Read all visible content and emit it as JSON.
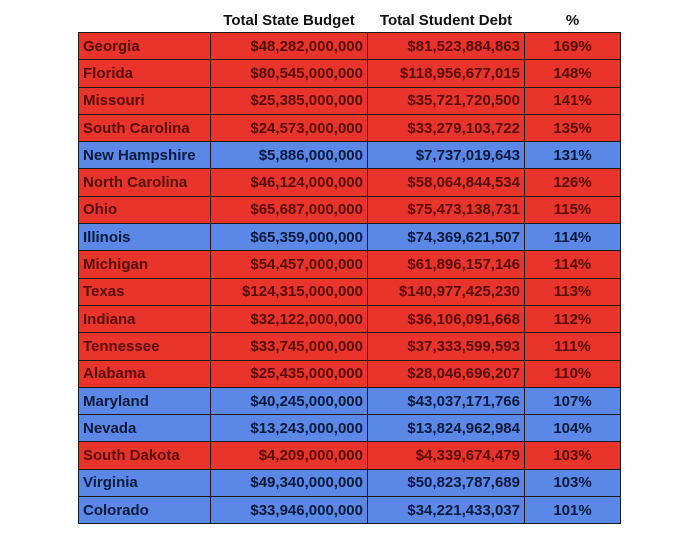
{
  "chart_data": {
    "type": "table",
    "columns": [
      "",
      "Total State Budget",
      "Total Student Debt",
      "%"
    ],
    "colors": {
      "red": "#e8342b",
      "blue": "#5b87e6"
    },
    "rows": [
      {
        "state": "Georgia",
        "budget": "$48,282,000,000",
        "debt": "$81,523,884,863",
        "pct": "169%",
        "color": "red"
      },
      {
        "state": "Florida",
        "budget": "$80,545,000,000",
        "debt": "$118,956,677,015",
        "pct": "148%",
        "color": "red"
      },
      {
        "state": "Missouri",
        "budget": "$25,385,000,000",
        "debt": "$35,721,720,500",
        "pct": "141%",
        "color": "red"
      },
      {
        "state": "South Carolina",
        "budget": "$24,573,000,000",
        "debt": "$33,279,103,722",
        "pct": "135%",
        "color": "red"
      },
      {
        "state": "New Hampshire",
        "budget": "$5,886,000,000",
        "debt": "$7,737,019,643",
        "pct": "131%",
        "color": "blue"
      },
      {
        "state": "North Carolina",
        "budget": "$46,124,000,000",
        "debt": "$58,064,844,534",
        "pct": "126%",
        "color": "red"
      },
      {
        "state": "Ohio",
        "budget": "$65,687,000,000",
        "debt": "$75,473,138,731",
        "pct": "115%",
        "color": "red"
      },
      {
        "state": "Illinois",
        "budget": "$65,359,000,000",
        "debt": "$74,369,621,507",
        "pct": "114%",
        "color": "blue"
      },
      {
        "state": "Michigan",
        "budget": "$54,457,000,000",
        "debt": "$61,896,157,146",
        "pct": "114%",
        "color": "red"
      },
      {
        "state": "Texas",
        "budget": "$124,315,000,000",
        "debt": "$140,977,425,230",
        "pct": "113%",
        "color": "red"
      },
      {
        "state": "Indiana",
        "budget": "$32,122,000,000",
        "debt": "$36,106,091,668",
        "pct": "112%",
        "color": "red"
      },
      {
        "state": "Tennessee",
        "budget": "$33,745,000,000",
        "debt": "$37,333,599,593",
        "pct": "111%",
        "color": "red"
      },
      {
        "state": "Alabama",
        "budget": "$25,435,000,000",
        "debt": "$28,046,696,207",
        "pct": "110%",
        "color": "red"
      },
      {
        "state": "Maryland",
        "budget": "$40,245,000,000",
        "debt": "$43,037,171,766",
        "pct": "107%",
        "color": "blue"
      },
      {
        "state": "Nevada",
        "budget": "$13,243,000,000",
        "debt": "$13,824,962,984",
        "pct": "104%",
        "color": "blue"
      },
      {
        "state": "South Dakota",
        "budget": "$4,209,000,000",
        "debt": "$4,339,674,479",
        "pct": "103%",
        "color": "red"
      },
      {
        "state": "Virginia",
        "budget": "$49,340,000,000",
        "debt": "$50,823,787,689",
        "pct": "103%",
        "color": "blue"
      },
      {
        "state": "Colorado",
        "budget": "$33,946,000,000",
        "debt": "$34,221,433,037",
        "pct": "101%",
        "color": "blue"
      }
    ]
  }
}
